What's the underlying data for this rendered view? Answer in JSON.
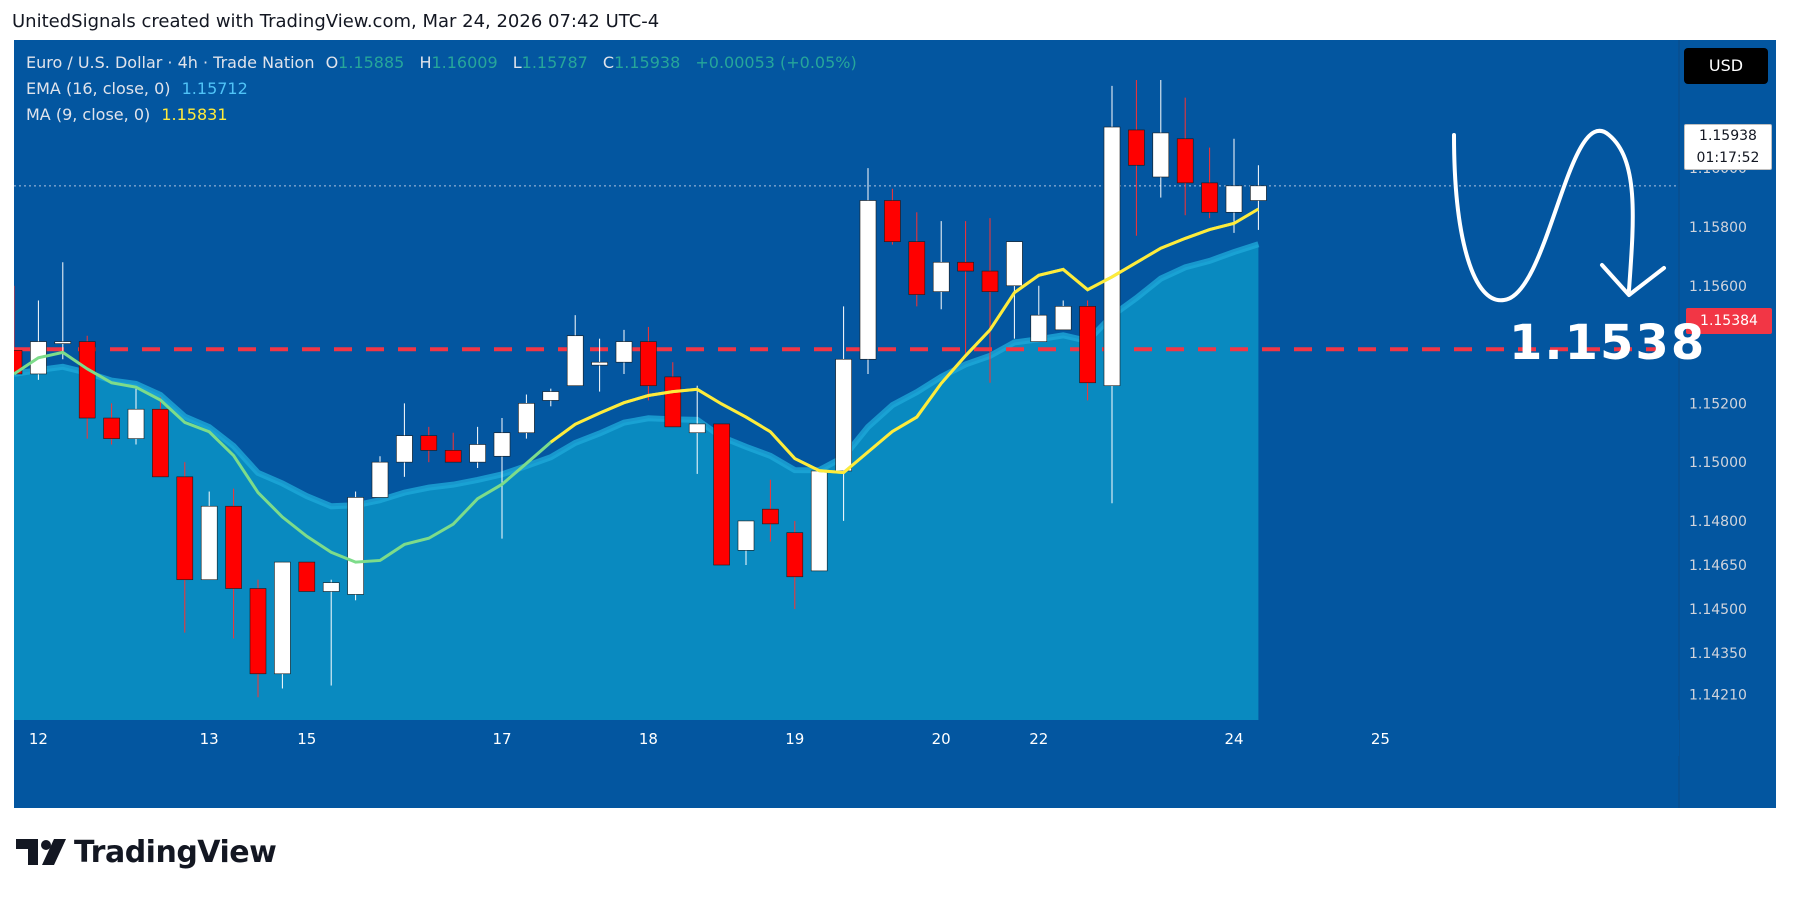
{
  "header": {
    "attribution": "UnitedSignals created with TradingView.com, Mar 24, 2026 07:42 UTC-4"
  },
  "legend": {
    "symbol": "Euro / U.S. Dollar · 4h · Trade Nation",
    "open_label": "O",
    "open": "1.15885",
    "high_label": "H",
    "high": "1.16009",
    "low_label": "L",
    "low": "1.15787",
    "close_label": "C",
    "close": "1.15938",
    "change": "+0.00053 (+0.05%)",
    "ema_label": "EMA (16, close, 0)",
    "ema_value": "1.15712",
    "ma_label": "MA (9, close, 0)",
    "ma_value": "1.15831"
  },
  "currency": "USD",
  "current_price_tag": {
    "price": "1.15938",
    "countdown": "01:17:52"
  },
  "target_price_tag": "1.15384",
  "annotation_text": "1.1538",
  "footer": {
    "brand": "TradingView"
  },
  "colors": {
    "background": "#0356a0",
    "area": "#0a8dc2",
    "bull_candle": "#ffffff",
    "bear_candle": "#ff0000",
    "ema_line": "#1ea8d8",
    "ma_line": "#ffeb3b",
    "target_line": "#f23645"
  },
  "chart_data": {
    "type": "candlestick",
    "price_axis": {
      "ticks": [
        "1.16000",
        "1.15800",
        "1.15600",
        "1.15200",
        "1.15000",
        "1.14800",
        "1.14650",
        "1.14500",
        "1.14350",
        "1.14210"
      ]
    },
    "time_axis": {
      "labels": [
        "12",
        "13",
        "15",
        "17",
        "18",
        "19",
        "20",
        "22",
        "24",
        "25"
      ]
    },
    "target_level": 1.15384,
    "candles": [
      {
        "o": 1.1538,
        "h": 1.156,
        "l": 1.153,
        "c": 1.153
      },
      {
        "o": 1.153,
        "h": 1.1555,
        "l": 1.1528,
        "c": 1.1541
      },
      {
        "o": 1.1541,
        "h": 1.1568,
        "l": 1.1535,
        "c": 1.1541
      },
      {
        "o": 1.1541,
        "h": 1.1543,
        "l": 1.1508,
        "c": 1.1515
      },
      {
        "o": 1.1515,
        "h": 1.152,
        "l": 1.1506,
        "c": 1.1508
      },
      {
        "o": 1.1508,
        "h": 1.1525,
        "l": 1.1506,
        "c": 1.1518
      },
      {
        "o": 1.1518,
        "h": 1.1522,
        "l": 1.1495,
        "c": 1.1495
      },
      {
        "o": 1.1495,
        "h": 1.15,
        "l": 1.1442,
        "c": 1.146
      },
      {
        "o": 1.146,
        "h": 1.149,
        "l": 1.146,
        "c": 1.1485
      },
      {
        "o": 1.1485,
        "h": 1.1491,
        "l": 1.144,
        "c": 1.1457
      },
      {
        "o": 1.1457,
        "h": 1.146,
        "l": 1.142,
        "c": 1.1428
      },
      {
        "o": 1.1428,
        "h": 1.1466,
        "l": 1.1423,
        "c": 1.1466
      },
      {
        "o": 1.1466,
        "h": 1.1466,
        "l": 1.1456,
        "c": 1.1456
      },
      {
        "o": 1.1456,
        "h": 1.146,
        "l": 1.1424,
        "c": 1.1459
      },
      {
        "o": 1.1455,
        "h": 1.149,
        "l": 1.1453,
        "c": 1.1488
      },
      {
        "o": 1.1488,
        "h": 1.1502,
        "l": 1.1488,
        "c": 1.15
      },
      {
        "o": 1.15,
        "h": 1.152,
        "l": 1.1495,
        "c": 1.1509
      },
      {
        "o": 1.1509,
        "h": 1.1512,
        "l": 1.15,
        "c": 1.1504
      },
      {
        "o": 1.1504,
        "h": 1.151,
        "l": 1.15,
        "c": 1.15
      },
      {
        "o": 1.15,
        "h": 1.1512,
        "l": 1.1498,
        "c": 1.1506
      },
      {
        "o": 1.1502,
        "h": 1.1515,
        "l": 1.1474,
        "c": 1.151
      },
      {
        "o": 1.151,
        "h": 1.1523,
        "l": 1.1508,
        "c": 1.152
      },
      {
        "o": 1.1521,
        "h": 1.1525,
        "l": 1.1519,
        "c": 1.1524
      },
      {
        "o": 1.1526,
        "h": 1.155,
        "l": 1.1527,
        "c": 1.1543
      },
      {
        "o": 1.1533,
        "h": 1.1542,
        "l": 1.1524,
        "c": 1.1534
      },
      {
        "o": 1.1534,
        "h": 1.1545,
        "l": 1.153,
        "c": 1.1541
      },
      {
        "o": 1.1541,
        "h": 1.1546,
        "l": 1.1521,
        "c": 1.1526
      },
      {
        "o": 1.1529,
        "h": 1.1534,
        "l": 1.1513,
        "c": 1.1512
      },
      {
        "o": 1.151,
        "h": 1.1526,
        "l": 1.1496,
        "c": 1.1513
      },
      {
        "o": 1.1513,
        "h": 1.1513,
        "l": 1.1465,
        "c": 1.1465
      },
      {
        "o": 1.147,
        "h": 1.148,
        "l": 1.1465,
        "c": 1.148
      },
      {
        "o": 1.1484,
        "h": 1.1494,
        "l": 1.1473,
        "c": 1.1479
      },
      {
        "o": 1.1476,
        "h": 1.148,
        "l": 1.145,
        "c": 1.1461
      },
      {
        "o": 1.1463,
        "h": 1.1497,
        "l": 1.1463,
        "c": 1.1497
      },
      {
        "o": 1.1497,
        "h": 1.1553,
        "l": 1.148,
        "c": 1.1535
      },
      {
        "o": 1.1535,
        "h": 1.16,
        "l": 1.153,
        "c": 1.1589
      },
      {
        "o": 1.1589,
        "h": 1.1593,
        "l": 1.1574,
        "c": 1.1575
      },
      {
        "o": 1.1575,
        "h": 1.1585,
        "l": 1.1553,
        "c": 1.1557
      },
      {
        "o": 1.1558,
        "h": 1.1582,
        "l": 1.1552,
        "c": 1.1568
      },
      {
        "o": 1.1568,
        "h": 1.1582,
        "l": 1.1537,
        "c": 1.1565
      },
      {
        "o": 1.1565,
        "h": 1.1583,
        "l": 1.1527,
        "c": 1.1558
      },
      {
        "o": 1.156,
        "h": 1.1575,
        "l": 1.1542,
        "c": 1.1575
      },
      {
        "o": 1.1541,
        "h": 1.156,
        "l": 1.1541,
        "c": 1.155
      },
      {
        "o": 1.1545,
        "h": 1.1555,
        "l": 1.1546,
        "c": 1.1553
      },
      {
        "o": 1.1553,
        "h": 1.1555,
        "l": 1.1521,
        "c": 1.1527
      },
      {
        "o": 1.1526,
        "h": 1.1628,
        "l": 1.1486,
        "c": 1.1614
      },
      {
        "o": 1.1613,
        "h": 1.163,
        "l": 1.1577,
        "c": 1.1601
      },
      {
        "o": 1.1597,
        "h": 1.163,
        "l": 1.159,
        "c": 1.1612
      },
      {
        "o": 1.161,
        "h": 1.1624,
        "l": 1.1584,
        "c": 1.1595
      },
      {
        "o": 1.1595,
        "h": 1.1607,
        "l": 1.1583,
        "c": 1.1585
      },
      {
        "o": 1.1585,
        "h": 1.161,
        "l": 1.1578,
        "c": 1.1594
      },
      {
        "o": 1.1589,
        "h": 1.1601,
        "l": 1.1579,
        "c": 1.1594
      }
    ]
  }
}
